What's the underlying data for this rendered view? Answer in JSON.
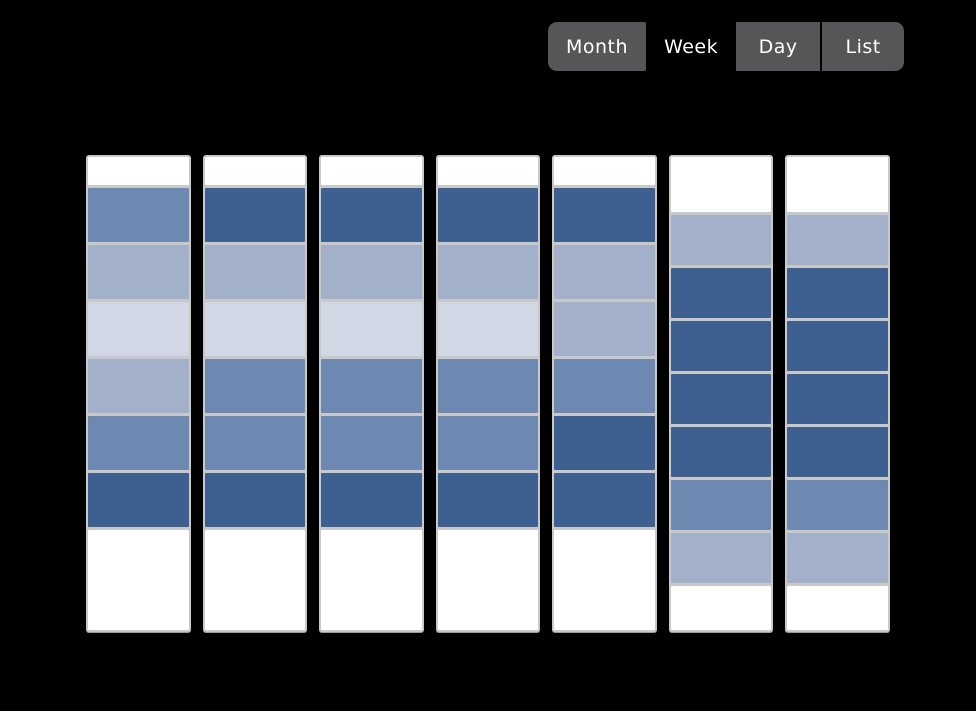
{
  "view_switcher": {
    "buttons": [
      {
        "label": "Month",
        "active": false
      },
      {
        "label": "Week",
        "active": true
      },
      {
        "label": "Day",
        "active": false
      },
      {
        "label": "List",
        "active": false
      }
    ]
  },
  "colors": {
    "page_bg": "#000000",
    "button_bg": "#565659",
    "button_text": "#ffffff",
    "grid_border": "#c9c9c9",
    "cell_bg": "#ffffff",
    "level_dark": "#3d6090",
    "level_medium": "#6d89b2",
    "level_light": "#a2b0c9",
    "level_faint": "#d1d7e4"
  },
  "week_grid": {
    "levels": {
      "dark": "#3d6090",
      "medium": "#6d89b2",
      "light": "#a2b0c9",
      "faint": "#d1d7e4"
    },
    "columns": [
      {
        "id": "day-1",
        "tall_header": false,
        "segments": [
          "medium",
          "light",
          "faint",
          "light",
          "medium",
          "dark"
        ]
      },
      {
        "id": "day-2",
        "tall_header": false,
        "segments": [
          "dark",
          "light",
          "faint",
          "medium",
          "medium",
          "dark"
        ]
      },
      {
        "id": "day-3",
        "tall_header": false,
        "segments": [
          "dark",
          "light",
          "faint",
          "medium",
          "medium",
          "dark"
        ]
      },
      {
        "id": "day-4",
        "tall_header": false,
        "segments": [
          "dark",
          "light",
          "faint",
          "medium",
          "medium",
          "dark"
        ]
      },
      {
        "id": "day-5",
        "tall_header": false,
        "segments": [
          "dark",
          "light",
          "light",
          "medium",
          "dark",
          "dark"
        ]
      },
      {
        "id": "day-6",
        "tall_header": true,
        "segments": [
          "light",
          "dark",
          "dark",
          "dark",
          "dark",
          "medium",
          "light"
        ]
      },
      {
        "id": "day-7",
        "tall_header": true,
        "segments": [
          "light",
          "dark",
          "dark",
          "dark",
          "dark",
          "medium",
          "light"
        ]
      }
    ]
  }
}
